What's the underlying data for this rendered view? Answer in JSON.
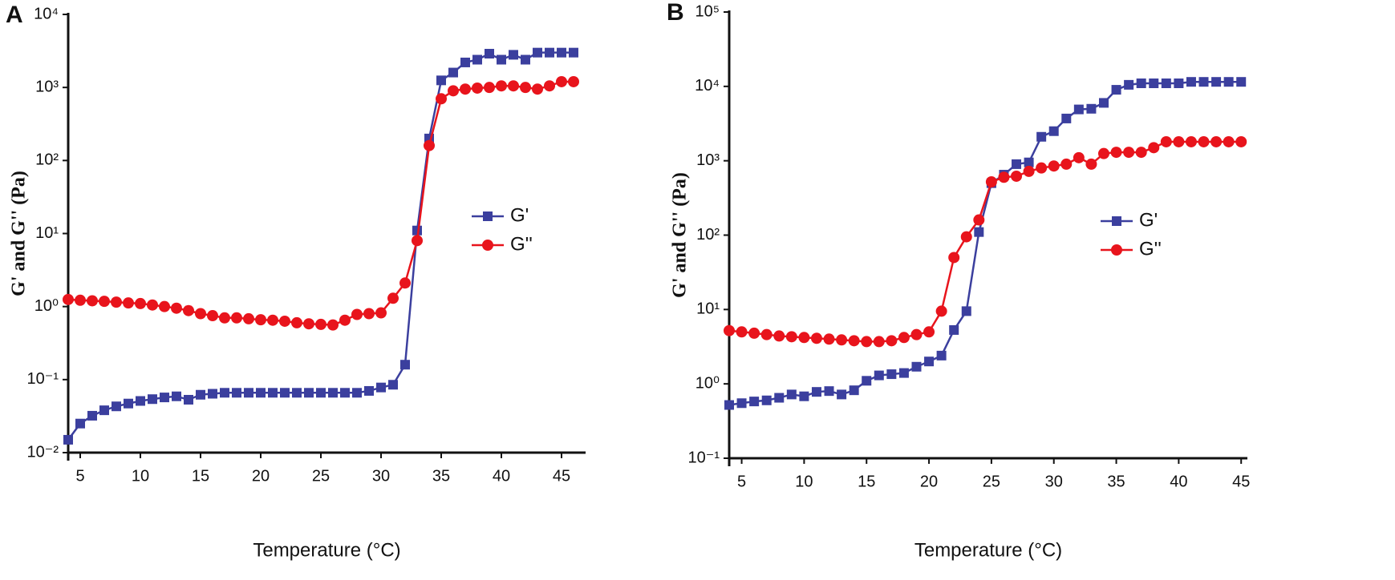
{
  "chart_data": [
    {
      "type": "line",
      "panel_label": "A",
      "x_label": "Temperature (°C)",
      "y_label": "G' and G'' (Pa)",
      "log_y": true,
      "legend_position": "right",
      "xlim": [
        4,
        47
      ],
      "ylim": [
        0.01,
        10000
      ],
      "xticks": [
        5,
        10,
        15,
        20,
        25,
        30,
        35,
        40,
        45
      ],
      "yticks": [
        {
          "value": 0.01,
          "label": "10⁻²"
        },
        {
          "value": 0.1,
          "label": "10⁻¹"
        },
        {
          "value": 1,
          "label": "10⁰"
        },
        {
          "value": 10,
          "label": "10¹"
        },
        {
          "value": 100,
          "label": "10²"
        },
        {
          "value": 1000,
          "label": "10³"
        },
        {
          "value": 10000,
          "label": "10⁴"
        }
      ],
      "x": [
        4,
        5,
        6,
        7,
        8,
        9,
        10,
        11,
        12,
        13,
        14,
        15,
        16,
        17,
        18,
        19,
        20,
        21,
        22,
        23,
        24,
        25,
        26,
        27,
        28,
        29,
        30,
        31,
        32,
        33,
        34,
        35,
        36,
        37,
        38,
        39,
        40,
        41,
        42,
        43,
        44,
        45,
        46
      ],
      "series": [
        {
          "name": "G'",
          "color": "#3b3f9e",
          "marker": "square",
          "values": [
            0.015,
            0.025,
            0.032,
            0.038,
            0.043,
            0.047,
            0.051,
            0.054,
            0.057,
            0.059,
            0.053,
            0.062,
            0.064,
            0.066,
            0.066,
            0.066,
            0.066,
            0.066,
            0.066,
            0.066,
            0.066,
            0.066,
            0.066,
            0.066,
            0.066,
            0.07,
            0.078,
            0.085,
            0.16,
            11,
            200,
            1250,
            1600,
            2200,
            2400,
            2900,
            2400,
            2800,
            2400,
            3000,
            3000,
            3000,
            3000
          ]
        },
        {
          "name": "G''",
          "color": "#e8141c",
          "marker": "circle",
          "values": [
            1.25,
            1.22,
            1.2,
            1.18,
            1.15,
            1.12,
            1.1,
            1.05,
            1.0,
            0.95,
            0.88,
            0.8,
            0.75,
            0.7,
            0.7,
            0.68,
            0.66,
            0.65,
            0.63,
            0.6,
            0.58,
            0.57,
            0.56,
            0.65,
            0.78,
            0.8,
            0.82,
            1.3,
            2.1,
            8,
            160,
            700,
            900,
            950,
            980,
            1000,
            1050,
            1050,
            1000,
            950,
            1050,
            1200,
            1200
          ]
        }
      ]
    },
    {
      "type": "line",
      "panel_label": "B",
      "x_label": "Temperature (°C)",
      "y_label": "G' and G'' (Pa)",
      "log_y": true,
      "legend_position": "right",
      "xlim": [
        4,
        45.5
      ],
      "ylim": [
        0.1,
        100000
      ],
      "xticks": [
        5,
        10,
        15,
        20,
        25,
        30,
        35,
        40,
        45
      ],
      "yticks": [
        {
          "value": 0.1,
          "label": "10⁻¹"
        },
        {
          "value": 1,
          "label": "10⁰"
        },
        {
          "value": 10,
          "label": "10¹"
        },
        {
          "value": 100,
          "label": "10²"
        },
        {
          "value": 1000,
          "label": "10³"
        },
        {
          "value": 10000,
          "label": "10⁴"
        },
        {
          "value": 100000,
          "label": "10⁵"
        }
      ],
      "x": [
        4,
        5,
        6,
        7,
        8,
        9,
        10,
        11,
        12,
        13,
        14,
        15,
        16,
        17,
        18,
        19,
        20,
        21,
        22,
        23,
        24,
        25,
        26,
        27,
        28,
        29,
        30,
        31,
        32,
        33,
        34,
        35,
        36,
        37,
        38,
        39,
        40,
        41,
        42,
        43,
        44,
        45
      ],
      "series": [
        {
          "name": "G'",
          "color": "#3b3f9e",
          "marker": "square",
          "values": [
            0.52,
            0.55,
            0.58,
            0.6,
            0.65,
            0.72,
            0.68,
            0.78,
            0.8,
            0.72,
            0.82,
            1.1,
            1.3,
            1.35,
            1.4,
            1.7,
            2.0,
            2.4,
            5.3,
            9.5,
            110,
            500,
            650,
            900,
            950,
            2100,
            2500,
            3700,
            4900,
            5000,
            6000,
            9000,
            10500,
            11000,
            11000,
            11000,
            11000,
            11500,
            11500,
            11500,
            11500,
            11500
          ]
        },
        {
          "name": "G''",
          "color": "#e8141c",
          "marker": "circle",
          "values": [
            5.2,
            5.0,
            4.8,
            4.6,
            4.4,
            4.3,
            4.2,
            4.1,
            4.0,
            3.9,
            3.8,
            3.7,
            3.7,
            3.8,
            4.2,
            4.6,
            5.0,
            9.5,
            50,
            95,
            160,
            520,
            600,
            620,
            720,
            800,
            850,
            900,
            1100,
            900,
            1250,
            1300,
            1300,
            1300,
            1500,
            1800,
            1800,
            1800,
            1800,
            1800,
            1800,
            1800
          ]
        }
      ]
    }
  ]
}
